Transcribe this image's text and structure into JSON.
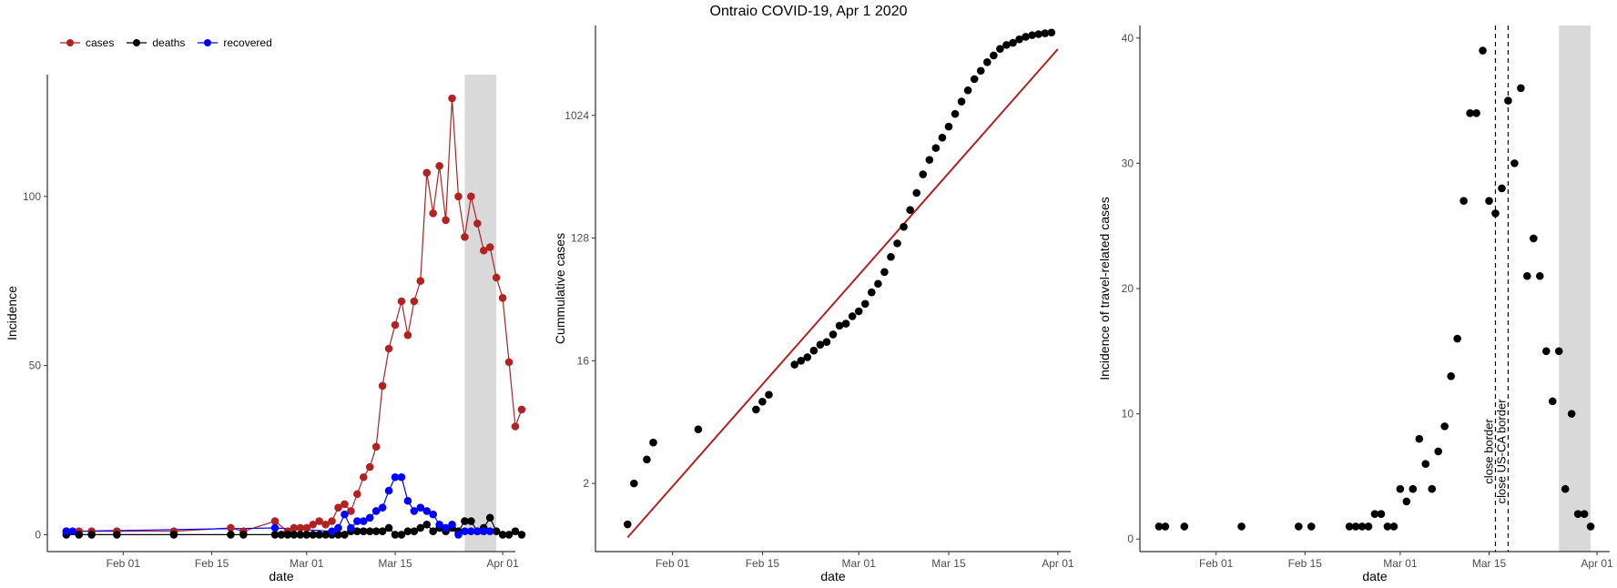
{
  "figure": {
    "title": "Ontraio COVID-19, Apr 1 2020",
    "legend": [
      {
        "label": "cases",
        "color": "#b22222"
      },
      {
        "label": "deaths",
        "color": "#000000"
      },
      {
        "label": "recovered",
        "color": "#0000ff"
      }
    ]
  },
  "chart_data": [
    {
      "type": "line",
      "xlabel": "date",
      "ylabel": "Incidence",
      "xticks": [
        {
          "date": "2020-02-01",
          "label": "Feb 01"
        },
        {
          "date": "2020-02-15",
          "label": "Feb 15"
        },
        {
          "date": "2020-03-01",
          "label": "Mar 01"
        },
        {
          "date": "2020-03-15",
          "label": "Mar 15"
        },
        {
          "date": "2020-04-01",
          "label": "Apr 01"
        }
      ],
      "yticks": [
        0,
        50,
        100
      ],
      "xlim": [
        "2020-01-20",
        "2020-04-03"
      ],
      "ylim": [
        -5,
        136
      ],
      "shaded_range": [
        "2020-03-26",
        "2020-03-31"
      ],
      "grid": false,
      "legend_position": "top-left",
      "series": [
        {
          "name": "cases",
          "color": "#b22222",
          "points": [
            [
              "2020-01-23",
              1
            ],
            [
              "2020-01-25",
              1
            ],
            [
              "2020-01-27",
              1
            ],
            [
              "2020-01-31",
              1
            ],
            [
              "2020-02-09",
              1
            ],
            [
              "2020-02-18",
              2
            ],
            [
              "2020-02-20",
              1
            ],
            [
              "2020-02-25",
              4
            ],
            [
              "2020-02-27",
              1
            ],
            [
              "2020-02-28",
              2
            ],
            [
              "2020-02-29",
              2
            ],
            [
              "2020-03-01",
              2
            ],
            [
              "2020-03-02",
              3
            ],
            [
              "2020-03-03",
              4
            ],
            [
              "2020-03-04",
              3
            ],
            [
              "2020-03-05",
              4
            ],
            [
              "2020-03-06",
              8
            ],
            [
              "2020-03-07",
              9
            ],
            [
              "2020-03-08",
              7
            ],
            [
              "2020-03-09",
              12
            ],
            [
              "2020-03-10",
              17
            ],
            [
              "2020-03-11",
              20
            ],
            [
              "2020-03-12",
              26
            ],
            [
              "2020-03-13",
              44
            ],
            [
              "2020-03-14",
              55
            ],
            [
              "2020-03-15",
              62
            ],
            [
              "2020-03-16",
              69
            ],
            [
              "2020-03-17",
              59
            ],
            [
              "2020-03-18",
              69
            ],
            [
              "2020-03-19",
              75
            ],
            [
              "2020-03-20",
              107
            ],
            [
              "2020-03-21",
              95
            ],
            [
              "2020-03-22",
              109
            ],
            [
              "2020-03-23",
              93
            ],
            [
              "2020-03-24",
              129
            ],
            [
              "2020-03-25",
              100
            ],
            [
              "2020-03-26",
              88
            ],
            [
              "2020-03-27",
              100
            ],
            [
              "2020-03-28",
              92
            ],
            [
              "2020-03-29",
              84
            ],
            [
              "2020-03-30",
              85
            ],
            [
              "2020-03-31",
              76
            ],
            [
              "2020-04-01",
              70
            ],
            [
              "2020-04-02",
              51
            ],
            [
              "2020-04-03",
              32
            ],
            [
              "2020-04-04",
              37
            ]
          ]
        },
        {
          "name": "deaths",
          "color": "#000000",
          "points": [
            [
              "2020-01-23",
              0
            ],
            [
              "2020-01-25",
              0
            ],
            [
              "2020-01-27",
              0
            ],
            [
              "2020-01-31",
              0
            ],
            [
              "2020-02-09",
              0
            ],
            [
              "2020-02-18",
              0
            ],
            [
              "2020-02-20",
              0
            ],
            [
              "2020-02-25",
              0
            ],
            [
              "2020-02-26",
              0
            ],
            [
              "2020-02-27",
              0
            ],
            [
              "2020-02-28",
              0
            ],
            [
              "2020-02-29",
              0
            ],
            [
              "2020-03-01",
              0
            ],
            [
              "2020-03-02",
              0
            ],
            [
              "2020-03-03",
              0
            ],
            [
              "2020-03-04",
              0
            ],
            [
              "2020-03-05",
              0
            ],
            [
              "2020-03-06",
              0
            ],
            [
              "2020-03-07",
              0
            ],
            [
              "2020-03-08",
              1
            ],
            [
              "2020-03-09",
              1
            ],
            [
              "2020-03-10",
              1
            ],
            [
              "2020-03-11",
              1
            ],
            [
              "2020-03-12",
              1
            ],
            [
              "2020-03-13",
              1
            ],
            [
              "2020-03-14",
              2
            ],
            [
              "2020-03-15",
              0
            ],
            [
              "2020-03-16",
              0
            ],
            [
              "2020-03-17",
              1
            ],
            [
              "2020-03-18",
              1
            ],
            [
              "2020-03-19",
              2
            ],
            [
              "2020-03-20",
              3
            ],
            [
              "2020-03-21",
              1
            ],
            [
              "2020-03-22",
              2
            ],
            [
              "2020-03-23",
              1
            ],
            [
              "2020-03-24",
              2
            ],
            [
              "2020-03-25",
              1
            ],
            [
              "2020-03-26",
              4
            ],
            [
              "2020-03-27",
              4
            ],
            [
              "2020-03-28",
              1
            ],
            [
              "2020-03-29",
              2
            ],
            [
              "2020-03-30",
              5
            ],
            [
              "2020-03-31",
              1
            ],
            [
              "2020-04-01",
              0
            ],
            [
              "2020-04-02",
              0
            ],
            [
              "2020-04-03",
              1
            ],
            [
              "2020-04-04",
              0
            ]
          ]
        },
        {
          "name": "recovered",
          "color": "#0000ff",
          "points": [
            [
              "2020-01-23",
              1
            ],
            [
              "2020-01-24",
              1
            ],
            [
              "2020-02-25",
              2
            ],
            [
              "2020-03-05",
              1
            ],
            [
              "2020-03-06",
              2
            ],
            [
              "2020-03-07",
              6
            ],
            [
              "2020-03-08",
              2
            ],
            [
              "2020-03-09",
              4
            ],
            [
              "2020-03-10",
              4
            ],
            [
              "2020-03-11",
              5
            ],
            [
              "2020-03-12",
              7
            ],
            [
              "2020-03-13",
              8
            ],
            [
              "2020-03-14",
              13
            ],
            [
              "2020-03-15",
              17
            ],
            [
              "2020-03-16",
              17
            ],
            [
              "2020-03-17",
              10
            ],
            [
              "2020-03-18",
              7
            ],
            [
              "2020-03-19",
              8
            ],
            [
              "2020-03-20",
              7
            ],
            [
              "2020-03-21",
              6
            ],
            [
              "2020-03-22",
              3
            ],
            [
              "2020-03-23",
              2
            ],
            [
              "2020-03-24",
              3
            ],
            [
              "2020-03-25",
              0
            ],
            [
              "2020-03-26",
              1
            ],
            [
              "2020-03-27",
              1
            ],
            [
              "2020-03-28",
              1
            ],
            [
              "2020-03-29",
              1
            ],
            [
              "2020-03-30",
              1
            ]
          ]
        }
      ]
    },
    {
      "type": "scatter",
      "xlabel": "date",
      "ylabel": "Cummulative cases",
      "y_scale": "log2",
      "xticks": [
        {
          "date": "2020-02-01",
          "label": "Feb 01"
        },
        {
          "date": "2020-02-15",
          "label": "Feb 15"
        },
        {
          "date": "2020-03-01",
          "label": "Mar 01"
        },
        {
          "date": "2020-03-15",
          "label": "Mar 15"
        },
        {
          "date": "2020-04-01",
          "label": "Apr 01"
        }
      ],
      "yticks": [
        2,
        16,
        128,
        1024
      ],
      "xlim": [
        "2020-01-20",
        "2020-04-03"
      ],
      "ylim": [
        0.63,
        4700
      ],
      "grid": false,
      "fit_line": {
        "color": "#b22222",
        "from": [
          "2020-01-25",
          0.8
        ],
        "to": [
          "2020-04-01",
          3150
        ]
      },
      "points": [
        [
          "2020-01-25",
          1
        ],
        [
          "2020-01-26",
          2
        ],
        [
          "2020-01-28",
          3
        ],
        [
          "2020-01-29",
          4
        ],
        [
          "2020-02-05",
          5
        ],
        [
          "2020-02-14",
          7
        ],
        [
          "2020-02-15",
          8
        ],
        [
          "2020-02-16",
          9
        ],
        [
          "2020-02-20",
          15
        ],
        [
          "2020-02-21",
          16
        ],
        [
          "2020-02-22",
          17
        ],
        [
          "2020-02-23",
          19
        ],
        [
          "2020-02-24",
          21
        ],
        [
          "2020-02-25",
          22
        ],
        [
          "2020-02-26",
          25
        ],
        [
          "2020-02-27",
          29
        ],
        [
          "2020-02-28",
          30
        ],
        [
          "2020-02-29",
          34
        ],
        [
          "2020-03-01",
          37
        ],
        [
          "2020-03-02",
          42
        ],
        [
          "2020-03-03",
          51
        ],
        [
          "2020-03-04",
          59
        ],
        [
          "2020-03-05",
          72
        ],
        [
          "2020-03-06",
          93
        ],
        [
          "2020-03-07",
          117
        ],
        [
          "2020-03-08",
          155
        ],
        [
          "2020-03-09",
          206
        ],
        [
          "2020-03-10",
          275
        ],
        [
          "2020-03-11",
          377
        ],
        [
          "2020-03-12",
          482
        ],
        [
          "2020-03-13",
          589
        ],
        [
          "2020-03-14",
          703
        ],
        [
          "2020-03-15",
          847
        ],
        [
          "2020-03-16",
          1050
        ],
        [
          "2020-03-17",
          1295
        ],
        [
          "2020-03-18",
          1566
        ],
        [
          "2020-03-19",
          1895
        ],
        [
          "2020-03-20",
          2181
        ],
        [
          "2020-03-21",
          2524
        ],
        [
          "2020-03-22",
          2827
        ],
        [
          "2020-03-23",
          3163
        ],
        [
          "2020-03-24",
          3380
        ],
        [
          "2020-03-25",
          3500
        ],
        [
          "2020-03-26",
          3720
        ],
        [
          "2020-03-27",
          3880
        ],
        [
          "2020-03-28",
          3990
        ],
        [
          "2020-03-29",
          4060
        ],
        [
          "2020-03-30",
          4120
        ],
        [
          "2020-03-31",
          4170
        ]
      ]
    },
    {
      "type": "scatter",
      "xlabel": "date",
      "ylabel": "Incidence of travel-related cases",
      "xticks": [
        {
          "date": "2020-02-01",
          "label": "Feb 01"
        },
        {
          "date": "2020-02-15",
          "label": "Feb 15"
        },
        {
          "date": "2020-03-01",
          "label": "Mar 01"
        },
        {
          "date": "2020-03-15",
          "label": "Mar 15"
        },
        {
          "date": "2020-04-01",
          "label": "Apr 01"
        }
      ],
      "yticks": [
        0,
        10,
        20,
        30,
        40
      ],
      "xlim": [
        "2020-01-20",
        "2020-04-03"
      ],
      "ylim": [
        -1.0,
        41.0
      ],
      "shaded_range": [
        "2020-03-26",
        "2020-03-31"
      ],
      "grid": false,
      "vlines": [
        {
          "date": "2020-03-16",
          "label": "close border"
        },
        {
          "date": "2020-03-18",
          "label": "close US-CA border"
        }
      ],
      "points": [
        [
          "2020-01-23",
          1
        ],
        [
          "2020-01-24",
          1
        ],
        [
          "2020-01-27",
          1
        ],
        [
          "2020-02-05",
          1
        ],
        [
          "2020-02-14",
          1
        ],
        [
          "2020-02-16",
          1
        ],
        [
          "2020-02-22",
          1
        ],
        [
          "2020-02-23",
          1
        ],
        [
          "2020-02-24",
          1
        ],
        [
          "2020-02-25",
          1
        ],
        [
          "2020-02-26",
          2
        ],
        [
          "2020-02-27",
          2
        ],
        [
          "2020-02-28",
          1
        ],
        [
          "2020-02-29",
          1
        ],
        [
          "2020-03-01",
          4
        ],
        [
          "2020-03-02",
          3
        ],
        [
          "2020-03-03",
          4
        ],
        [
          "2020-03-04",
          8
        ],
        [
          "2020-03-05",
          6
        ],
        [
          "2020-03-06",
          4
        ],
        [
          "2020-03-07",
          7
        ],
        [
          "2020-03-08",
          9
        ],
        [
          "2020-03-09",
          13
        ],
        [
          "2020-03-10",
          16
        ],
        [
          "2020-03-11",
          27
        ],
        [
          "2020-03-12",
          34
        ],
        [
          "2020-03-13",
          34
        ],
        [
          "2020-03-14",
          39
        ],
        [
          "2020-03-15",
          27
        ],
        [
          "2020-03-16",
          26
        ],
        [
          "2020-03-17",
          28
        ],
        [
          "2020-03-18",
          35
        ],
        [
          "2020-03-19",
          30
        ],
        [
          "2020-03-20",
          36
        ],
        [
          "2020-03-21",
          21
        ],
        [
          "2020-03-22",
          24
        ],
        [
          "2020-03-23",
          21
        ],
        [
          "2020-03-24",
          15
        ],
        [
          "2020-03-25",
          11
        ],
        [
          "2020-03-26",
          15
        ],
        [
          "2020-03-27",
          4
        ],
        [
          "2020-03-28",
          10
        ],
        [
          "2020-03-29",
          2
        ],
        [
          "2020-03-30",
          2
        ],
        [
          "2020-03-31",
          1
        ]
      ]
    }
  ]
}
